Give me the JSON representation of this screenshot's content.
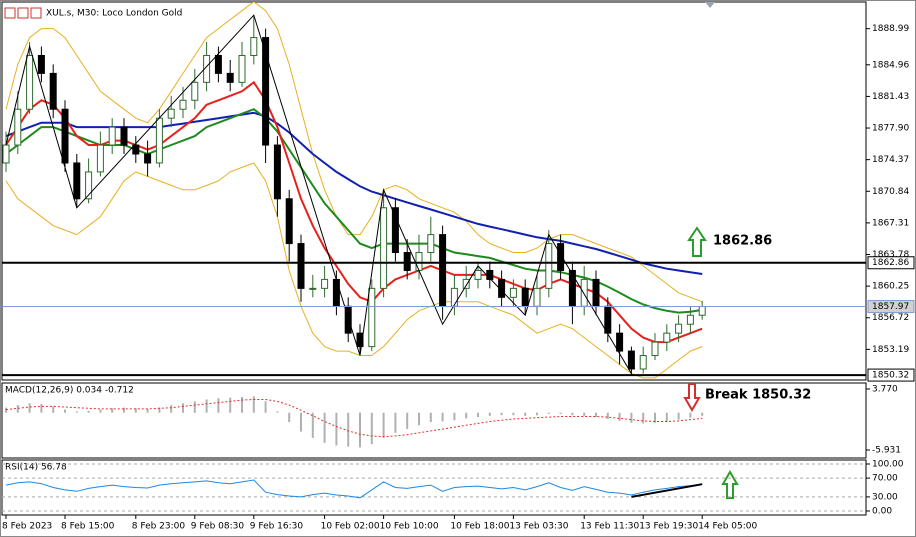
{
  "chart_data": [
    {
      "type": "candlestick",
      "title": "XUL.s, M30:  Loco London Gold",
      "categories": [
        "8 Feb 2023",
        null,
        null,
        null,
        null,
        "8 Feb 15:00",
        null,
        null,
        null,
        null,
        null,
        "8 Feb 23:00",
        null,
        null,
        null,
        null,
        "9 Feb 08:30",
        null,
        null,
        null,
        null,
        "9 Feb 16:30",
        null,
        null,
        null,
        null,
        null,
        "10 Feb 02:00",
        null,
        null,
        null,
        null,
        "10 Feb 10:00",
        null,
        null,
        null,
        null,
        null,
        "10 Feb 18:00",
        null,
        null,
        null,
        null,
        "13 Feb 03:30",
        null,
        null,
        null,
        null,
        null,
        "13 Feb 11:30",
        null,
        null,
        null,
        null,
        "13 Feb 19:30",
        null,
        null,
        null,
        null,
        "14 Feb 05:00"
      ],
      "open": [
        1874,
        1876,
        1880,
        1886,
        1884,
        1880,
        1874,
        1870,
        1873,
        1876,
        1878,
        1876,
        1875,
        1874,
        1879,
        1880,
        1881,
        1883,
        1886,
        1884,
        1883,
        1886,
        1888,
        1876,
        1870,
        1865,
        1860,
        1860,
        1861,
        1858,
        1855,
        1853.5,
        1860,
        1869,
        1864,
        1862,
        1864,
        1866,
        1858,
        1860,
        1861,
        1862,
        1861,
        1859,
        1860,
        1858,
        1860,
        1865,
        1862,
        1858,
        1861,
        1858,
        1855,
        1853,
        1851,
        1852.5,
        1854,
        1855,
        1856,
        1857
      ],
      "high": [
        1877.5,
        1882,
        1887.5,
        1887,
        1885,
        1881,
        1875,
        1874.5,
        1877.5,
        1879,
        1879,
        1877,
        1876.5,
        1880,
        1881.5,
        1882.5,
        1884.5,
        1887.5,
        1887,
        1885.5,
        1887.5,
        1890.5,
        1889,
        1877,
        1871,
        1866,
        1861.5,
        1862.5,
        1862,
        1859,
        1856,
        1861,
        1871,
        1870,
        1865.5,
        1866,
        1868,
        1867,
        1861.5,
        1862.5,
        1863,
        1863,
        1862,
        1861,
        1861,
        1861.5,
        1866.5,
        1866,
        1863,
        1862.5,
        1862,
        1859,
        1856,
        1853.5,
        1853.5,
        1855,
        1856,
        1857,
        1858,
        1858.6
      ],
      "low": [
        1873,
        1875,
        1879.5,
        1883,
        1879,
        1873,
        1869,
        1869.5,
        1872.5,
        1875,
        1875,
        1874,
        1872.5,
        1873.5,
        1878,
        1879,
        1880,
        1882,
        1883,
        1882,
        1882.5,
        1885,
        1874,
        1868,
        1863,
        1858.5,
        1859,
        1859,
        1857,
        1854,
        1852.5,
        1853,
        1859,
        1863,
        1861,
        1861,
        1863,
        1856.5,
        1857,
        1859,
        1860,
        1860,
        1858,
        1858,
        1857,
        1857,
        1859,
        1861,
        1856,
        1857,
        1857,
        1854,
        1851.5,
        1850.3,
        1850.5,
        1852,
        1853,
        1854,
        1855,
        1856.5
      ],
      "close": [
        1876,
        1880,
        1886,
        1884,
        1880,
        1874,
        1870,
        1873,
        1876,
        1878,
        1876,
        1875,
        1874,
        1879,
        1880,
        1881,
        1883,
        1886,
        1884,
        1883,
        1886,
        1888,
        1876,
        1870,
        1865,
        1860,
        1860,
        1861,
        1858,
        1855,
        1853.5,
        1860,
        1869,
        1864,
        1862,
        1864,
        1866,
        1858,
        1860,
        1861,
        1862,
        1861,
        1859,
        1860,
        1858,
        1860,
        1865,
        1862,
        1858,
        1861,
        1858,
        1855,
        1853,
        1851,
        1852.5,
        1854,
        1855,
        1856,
        1857,
        1857.97
      ],
      "up_color": "#2e6b2e",
      "down_color": "#000000",
      "series": [
        {
          "color": "#e8b020",
          "values": [
            1880,
            1885,
            1888,
            1889,
            1889,
            1888,
            1886,
            1884,
            1882,
            1881,
            1880,
            1879,
            1878.5,
            1880,
            1882,
            1884,
            1886,
            1888,
            1889,
            1890,
            1891,
            1892,
            1891,
            1889,
            1885,
            1880,
            1875,
            1871,
            1868,
            1866,
            1866,
            1868,
            1871,
            1871.5,
            1871,
            1870,
            1869.5,
            1869,
            1868.5,
            1867.5,
            1866,
            1865,
            1864.5,
            1864,
            1864,
            1864.5,
            1865.5,
            1866,
            1866,
            1865.5,
            1865,
            1864.5,
            1864,
            1863.5,
            1862.5,
            1861.5,
            1860.5,
            1859.5,
            1859,
            1858.5
          ]
        },
        {
          "color": "#e8b020",
          "values": [
            1872,
            1870,
            1869,
            1868,
            1867,
            1866.5,
            1866,
            1867,
            1868,
            1870,
            1872,
            1873,
            1872.5,
            1872,
            1871.5,
            1871,
            1871,
            1871.5,
            1872,
            1873,
            1873.5,
            1874,
            1872,
            1868,
            1862,
            1858,
            1855,
            1853.5,
            1853,
            1853,
            1852.5,
            1852.5,
            1853.5,
            1855,
            1856.5,
            1857.5,
            1858,
            1858.5,
            1858.5,
            1858.5,
            1858.5,
            1858,
            1857.5,
            1857,
            1856,
            1855,
            1855.5,
            1856,
            1855.5,
            1854.5,
            1853.5,
            1852.5,
            1851.5,
            1850.5,
            1850,
            1850,
            1851,
            1852,
            1853,
            1853.5
          ]
        },
        {
          "color": "#1020b0",
          "values": [
            1877,
            1877.5,
            1878,
            1878.5,
            1878.5,
            1878.5,
            1878,
            1878,
            1878,
            1878,
            1878,
            1878,
            1878,
            1878,
            1878.2,
            1878.4,
            1878.6,
            1878.8,
            1879,
            1879.2,
            1879.4,
            1879.6,
            1879.2,
            1878.4,
            1877.4,
            1876.2,
            1875,
            1874,
            1873,
            1872.2,
            1871.4,
            1870.8,
            1870.4,
            1870,
            1869.6,
            1869.2,
            1868.8,
            1868.4,
            1868,
            1867.6,
            1867.2,
            1866.9,
            1866.6,
            1866.3,
            1866,
            1865.7,
            1865.5,
            1865.3,
            1865,
            1864.7,
            1864.4,
            1864,
            1863.6,
            1863.2,
            1862.8,
            1862.5,
            1862.2,
            1862,
            1861.8,
            1861.6
          ]
        },
        {
          "color": "#1e8a1e",
          "values": [
            1875,
            1876,
            1877,
            1878,
            1878,
            1877.5,
            1877,
            1876.5,
            1876,
            1876,
            1876,
            1875.5,
            1875,
            1875.5,
            1876,
            1876.5,
            1877,
            1878,
            1878.5,
            1879,
            1879.5,
            1880,
            1879,
            1877.5,
            1875.5,
            1873.5,
            1871.5,
            1869.5,
            1868,
            1866.5,
            1865,
            1864.5,
            1865,
            1865,
            1865,
            1865,
            1865,
            1864.5,
            1864,
            1863.8,
            1863.6,
            1863.4,
            1863,
            1862.6,
            1862.2,
            1862,
            1862,
            1861.8,
            1861.5,
            1861.2,
            1860.8,
            1860.2,
            1859.5,
            1858.8,
            1858.2,
            1857.8,
            1857.5,
            1857.3,
            1857.4,
            1857.6
          ]
        },
        {
          "color": "#e8201c",
          "values": [
            1876,
            1878,
            1880,
            1881,
            1880.5,
            1879,
            1877,
            1876,
            1876,
            1876.5,
            1876.5,
            1876,
            1875.5,
            1876,
            1877,
            1878,
            1879,
            1880.5,
            1881,
            1881.5,
            1882,
            1883,
            1881,
            1878,
            1874,
            1870,
            1867,
            1864.5,
            1862.5,
            1860.5,
            1859,
            1858.5,
            1860,
            1861,
            1861.5,
            1862,
            1862.5,
            1862,
            1861.5,
            1861.5,
            1861.5,
            1861.5,
            1861,
            1860.5,
            1860,
            1859.8,
            1860.5,
            1861,
            1860.5,
            1860,
            1859.5,
            1858.5,
            1857,
            1855.5,
            1854.5,
            1854,
            1854,
            1854.5,
            1855,
            1855.5
          ]
        }
      ],
      "zigzag": {
        "color": "#000000",
        "x": [
          0,
          2,
          6,
          21,
          30,
          32,
          37,
          40,
          44,
          46,
          53
        ],
        "values": [
          1876,
          1887,
          1869,
          1890.5,
          1852.5,
          1871,
          1856,
          1862.5,
          1857,
          1866,
          1850.5
        ]
      },
      "levels": [
        {
          "value": 1862.86,
          "color": "#000000"
        },
        {
          "value": 1857.97,
          "color": "#7d9bd6"
        },
        {
          "value": 1850.32,
          "color": "#000000"
        }
      ],
      "ylim": [
        1849.77,
        1891.97
      ],
      "yticks": [
        1888.99,
        1884.96,
        1881.43,
        {
          "value": 1877.9,
          "label": "1877.90"
        },
        1874.37,
        1870.84,
        1867.31,
        1863.78,
        1860.25,
        1856.72,
        1853.19
      ],
      "annotations": [
        "1862.86",
        "Break 1850.32"
      ]
    },
    {
      "type": "bar",
      "title": "MACD(12,26,9) 0.034 -0.712",
      "color": "#b0b0b0",
      "values": [
        0.8,
        1.2,
        1.5,
        1.4,
        1.0,
        0.5,
        0.2,
        0.3,
        0.5,
        0.7,
        0.8,
        0.7,
        0.6,
        0.8,
        1.2,
        1.5,
        1.8,
        2.1,
        2.3,
        2.4,
        2.5,
        2.6,
        1.8,
        0.2,
        -1.5,
        -3,
        -4,
        -4.8,
        -5.2,
        -5.4,
        -5.5,
        -5,
        -4,
        -3.2,
        -2.6,
        -2,
        -1.5,
        -1.4,
        -1.2,
        -0.9,
        -0.7,
        -0.5,
        -0.4,
        -0.4,
        -0.5,
        -0.4,
        -0.2,
        -0.2,
        -0.4,
        -0.5,
        -0.7,
        -1,
        -1.3,
        -1.6,
        -1.7,
        -1.6,
        -1.4,
        -1.1,
        -0.8,
        -0.5
      ],
      "line": {
        "color": "#e03030",
        "values": [
          0.5,
          0.7,
          0.9,
          1.0,
          1.0,
          0.9,
          0.8,
          0.7,
          0.6,
          0.6,
          0.6,
          0.6,
          0.6,
          0.7,
          0.8,
          1.0,
          1.2,
          1.4,
          1.6,
          1.8,
          2.0,
          2.1,
          2.1,
          1.8,
          1.2,
          0.4,
          -0.5,
          -1.4,
          -2.2,
          -2.9,
          -3.4,
          -3.7,
          -3.8,
          -3.7,
          -3.5,
          -3.2,
          -2.9,
          -2.6,
          -2.3,
          -2.0,
          -1.7,
          -1.4,
          -1.2,
          -1.0,
          -0.9,
          -0.8,
          -0.7,
          -0.6,
          -0.6,
          -0.6,
          -0.6,
          -0.7,
          -0.9,
          -1.1,
          -1.3,
          -1.4,
          -1.4,
          -1.3,
          -1.1,
          -0.9
        ]
      },
      "ylim": [
        -7.2,
        4.72
      ],
      "yticks": [
        {
          "value": 3.77,
          "label": "3.770"
        },
        -5.931
      ]
    },
    {
      "type": "line",
      "title": "RSI(14) 56.78",
      "color": "#1e88e5",
      "values": [
        55,
        60,
        62,
        58,
        50,
        45,
        42,
        48,
        52,
        55,
        52,
        50,
        49,
        55,
        58,
        60,
        62,
        64,
        60,
        58,
        62,
        66,
        40,
        35,
        32,
        30,
        35,
        38,
        34,
        32,
        28,
        45,
        62,
        50,
        48,
        52,
        55,
        42,
        50,
        52,
        53,
        50,
        47,
        50,
        45,
        52,
        60,
        50,
        44,
        52,
        46,
        40,
        38,
        34,
        40,
        45,
        48,
        52,
        54,
        56.78
      ],
      "trendline": {
        "color": "#000000",
        "x": [
          53,
          59
        ],
        "values": [
          30,
          57
        ]
      },
      "ylim": [
        -8.5,
        108.5
      ],
      "yticks": [
        {
          "value": 100,
          "label": "100.00"
        },
        {
          "value": 70,
          "label": "70.00"
        },
        {
          "value": 30,
          "label": "30.00"
        },
        {
          "value": 0,
          "label": "0.00"
        }
      ],
      "grid": true
    }
  ]
}
